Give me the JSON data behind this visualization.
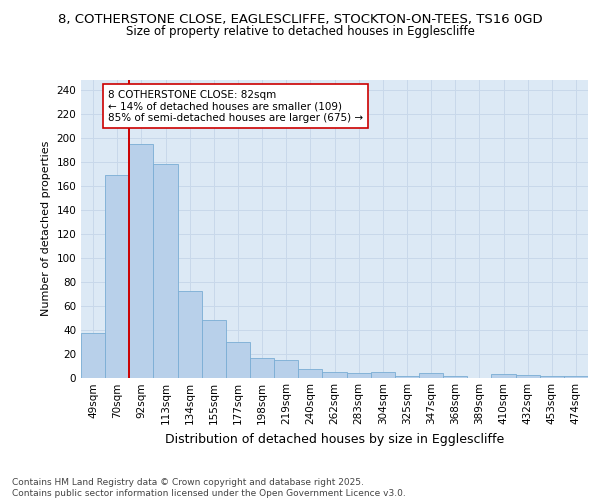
{
  "title_line1": "8, COTHERSTONE CLOSE, EAGLESCLIFFE, STOCKTON-ON-TEES, TS16 0GD",
  "title_line2": "Size of property relative to detached houses in Egglescliffe",
  "xlabel": "Distribution of detached houses by size in Egglescliffe",
  "ylabel": "Number of detached properties",
  "categories": [
    "49sqm",
    "70sqm",
    "92sqm",
    "113sqm",
    "134sqm",
    "155sqm",
    "177sqm",
    "198sqm",
    "219sqm",
    "240sqm",
    "262sqm",
    "283sqm",
    "304sqm",
    "325sqm",
    "347sqm",
    "368sqm",
    "389sqm",
    "410sqm",
    "432sqm",
    "453sqm",
    "474sqm"
  ],
  "values": [
    37,
    169,
    195,
    178,
    72,
    48,
    30,
    16,
    15,
    7,
    5,
    4,
    5,
    1,
    4,
    1,
    0,
    3,
    2,
    1,
    1
  ],
  "bar_color": "#b8d0ea",
  "bar_edge_color": "#7aadd4",
  "vline_x": 1.5,
  "vline_color": "#cc0000",
  "annotation_text": "8 COTHERSTONE CLOSE: 82sqm\n← 14% of detached houses are smaller (109)\n85% of semi-detached houses are larger (675) →",
  "annotation_box_facecolor": "#ffffff",
  "annotation_box_edgecolor": "#cc0000",
  "ylim": [
    0,
    248
  ],
  "yticks": [
    0,
    20,
    40,
    60,
    80,
    100,
    120,
    140,
    160,
    180,
    200,
    220,
    240
  ],
  "grid_color": "#c8d8ea",
  "bg_color": "#dce9f5",
  "footer": "Contains HM Land Registry data © Crown copyright and database right 2025.\nContains public sector information licensed under the Open Government Licence v3.0.",
  "title_fontsize": 9.5,
  "subtitle_fontsize": 8.5,
  "ylabel_fontsize": 8,
  "xlabel_fontsize": 9,
  "tick_fontsize": 7.5,
  "ann_fontsize": 7.5,
  "footer_fontsize": 6.5
}
